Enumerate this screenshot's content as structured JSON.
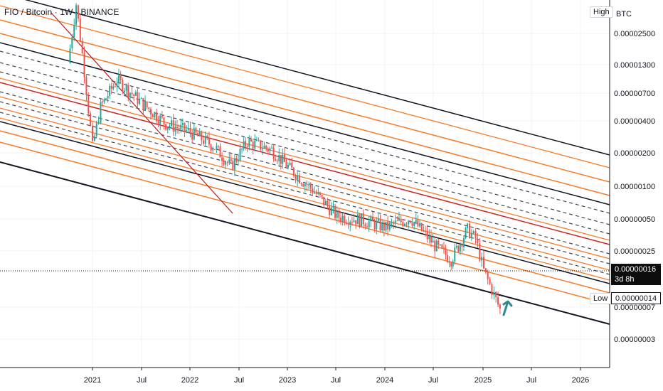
{
  "header": {
    "symbol": "FIO / Bitcoin · 1W · BINANCE",
    "unit": "BTC"
  },
  "tags": {
    "high": "High",
    "low": "Low"
  },
  "price_badge": {
    "price": "0.00000016",
    "countdown": "3d 8h"
  },
  "low_badge": {
    "price": "0.00000014"
  },
  "colors": {
    "up": "#26a69a",
    "down": "#ef5350",
    "channel_outer": "#131722",
    "channel_orange": "#f57c2a",
    "channel_mid": "#c62828",
    "dashed": "#434651",
    "diagonal": "#b71c1c",
    "arrow": "#2e8b8b"
  },
  "chart_data": {
    "type": "candlestick",
    "title": "FIO / Bitcoin · 1W · BINANCE",
    "xlabel": "",
    "ylabel": "",
    "y_scale": "log",
    "y_ticks": [
      "0.00002500",
      "0.00001300",
      "0.00000700",
      "0.00000400",
      "0.00000200",
      "0.00000100",
      "0.00000050",
      "0.00000025",
      "0.00000007",
      "0.00000003"
    ],
    "x_ticks": [
      "2021",
      "Jul",
      "2022",
      "Jul",
      "2023",
      "Jul",
      "2024",
      "Jul",
      "2025",
      "Jul",
      "2026"
    ],
    "last_price": 1.6e-07,
    "period_low": 1.4e-07,
    "price_path": [
      {
        "date": "2020-10",
        "close": 8.5e-06
      },
      {
        "date": "2020-11",
        "close": 2.2e-05
      },
      {
        "date": "2020-12",
        "close": 7.5e-06
      },
      {
        "date": "2021-01",
        "close": 2.2e-06
      },
      {
        "date": "2021-02",
        "close": 4.2e-06
      },
      {
        "date": "2021-04",
        "close": 6.5e-06
      },
      {
        "date": "2021-07",
        "close": 4.5e-06
      },
      {
        "date": "2021-10",
        "close": 3.2e-06
      },
      {
        "date": "2022-01",
        "close": 2.8e-06
      },
      {
        "date": "2022-04",
        "close": 2.2e-06
      },
      {
        "date": "2022-06",
        "close": 1.6e-06
      },
      {
        "date": "2022-08",
        "close": 2.4e-06
      },
      {
        "date": "2022-11",
        "close": 2.1e-06
      },
      {
        "date": "2023-01",
        "close": 1.6e-06
      },
      {
        "date": "2023-04",
        "close": 1.1e-06
      },
      {
        "date": "2023-07",
        "close": 7.2e-07
      },
      {
        "date": "2023-10",
        "close": 6.8e-07
      },
      {
        "date": "2024-01",
        "close": 6e-07
      },
      {
        "date": "2024-04",
        "close": 7e-07
      },
      {
        "date": "2024-07",
        "close": 4.5e-07
      },
      {
        "date": "2024-09",
        "close": 3.6e-07
      },
      {
        "date": "2024-11",
        "close": 5.8e-07
      },
      {
        "date": "2024-12",
        "close": 5e-07
      },
      {
        "date": "2025-01",
        "close": 3e-07
      },
      {
        "date": "2025-02",
        "close": 2.2e-07
      },
      {
        "date": "2025-03",
        "close": 1.6e-07
      }
    ]
  }
}
